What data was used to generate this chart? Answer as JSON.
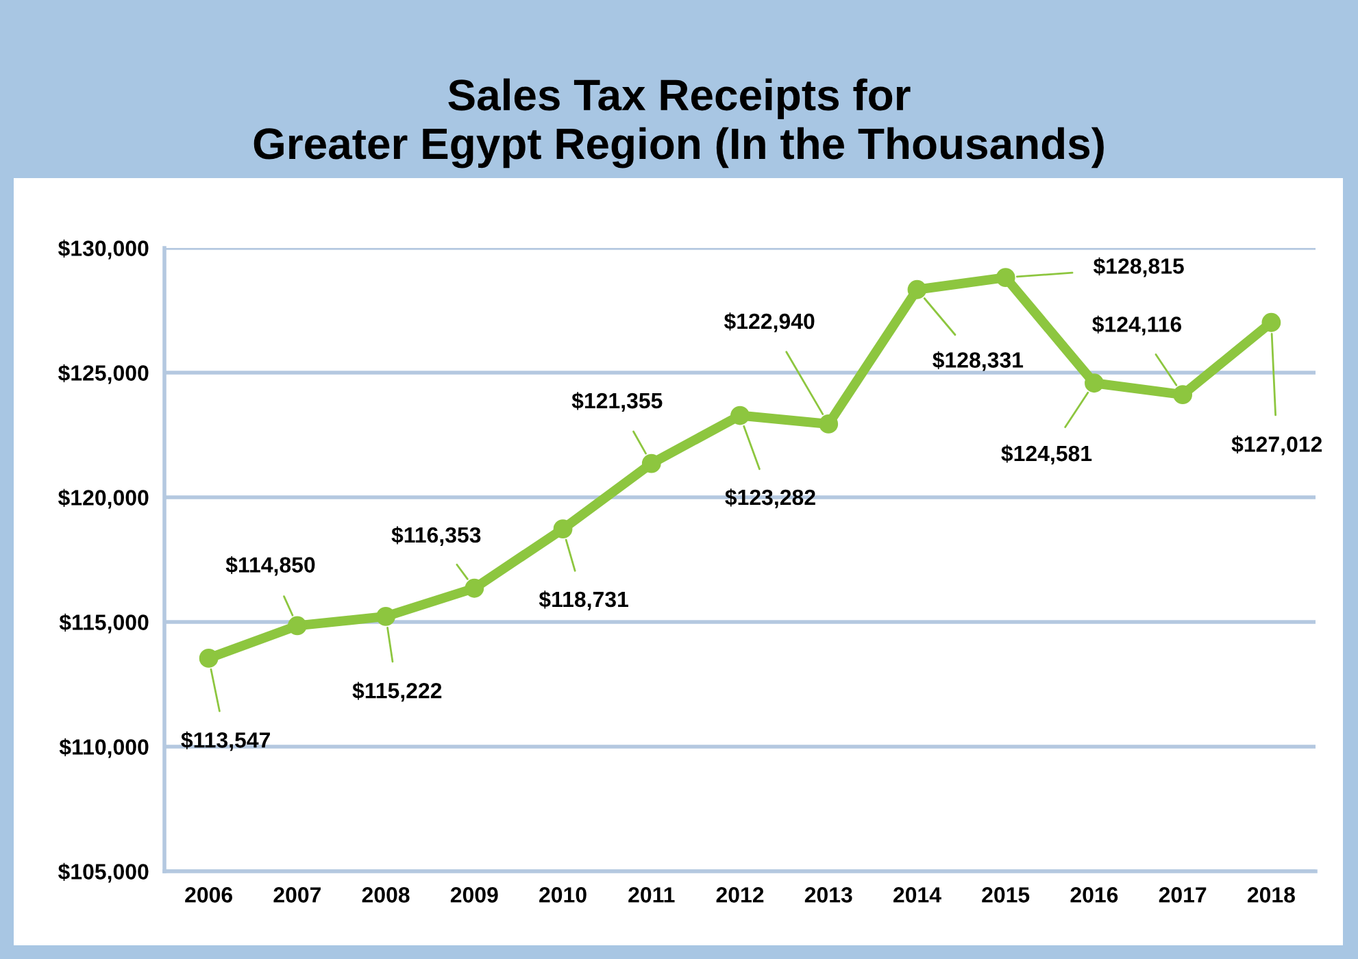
{
  "chart_data": {
    "type": "line",
    "title": "Sales Tax Receipts for\nGreater Egypt Region (In the Thousands)",
    "categories": [
      "2006",
      "2007",
      "2008",
      "2009",
      "2010",
      "2011",
      "2012",
      "2013",
      "2014",
      "2015",
      "2016",
      "2017",
      "2018"
    ],
    "series": [
      {
        "color": "#8dc63f",
        "values": [
          113547,
          114850,
          115222,
          116353,
          118731,
          121355,
          123282,
          122940,
          128331,
          128815,
          124581,
          124116,
          127012
        ],
        "value_labels": [
          "$113,547",
          "$114,850",
          "$115,222",
          "$116,353",
          "$118,731",
          "$121,355",
          "$123,282",
          "$122,940",
          "$128,331",
          "$128,815",
          "$124,581",
          "$124,116",
          "$127,012"
        ]
      }
    ],
    "ylim": [
      105000,
      130000
    ],
    "yticks": [
      {
        "value": 105000,
        "label": "$105,000"
      },
      {
        "value": 110000,
        "label": "$110,000"
      },
      {
        "value": 115000,
        "label": "$115,000"
      },
      {
        "value": 120000,
        "label": "$120,000"
      },
      {
        "value": 125000,
        "label": "$125,000"
      },
      {
        "value": 130000,
        "label": "$130,000"
      }
    ],
    "grid": "y",
    "marker": "circle",
    "line_style": "solid",
    "legend": false
  }
}
